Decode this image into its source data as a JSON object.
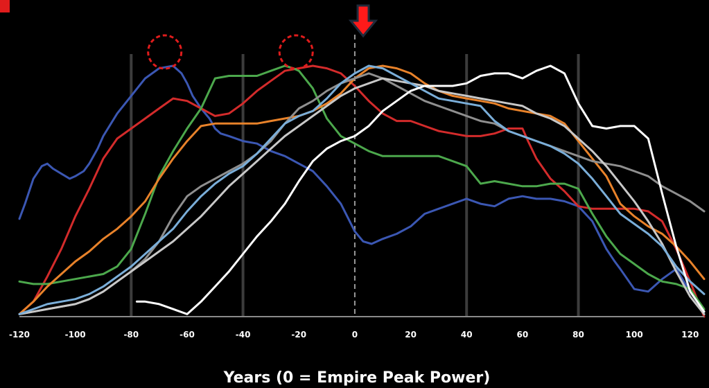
{
  "chart_data": {
    "type": "line",
    "title": "",
    "xlabel": "Years (0 = Empire Peak Power)",
    "ylabel": "",
    "xlim": [
      -120,
      125
    ],
    "ylim": [
      0,
      100
    ],
    "xticks": [
      -120,
      -100,
      -80,
      -60,
      -40,
      -20,
      0,
      20,
      40,
      60,
      80,
      100,
      120
    ],
    "gridlines_x": [
      -80,
      -40,
      40,
      80
    ],
    "grid": "vertical lines at selected ticks",
    "reference_line": {
      "x": 0,
      "style": "dashed"
    },
    "peak_markers": [
      {
        "x": -68,
        "y": 100
      },
      {
        "x": -21,
        "y": 100
      }
    ],
    "arrow_marker": {
      "x": 3
    },
    "series": [
      {
        "color": "#3b57b3",
        "x": [
          -120,
          -118,
          -115,
          -112,
          -110,
          -108,
          -105,
          -102,
          -100,
          -97,
          -95,
          -92,
          -90,
          -85,
          -80,
          -75,
          -70,
          -65,
          -62,
          -60,
          -58,
          -55,
          -52,
          -50,
          -48,
          -45,
          -40,
          -35,
          -30,
          -25,
          -20,
          -15,
          -10,
          -5,
          0,
          3,
          6,
          10,
          15,
          20,
          25,
          30,
          35,
          40,
          45,
          50,
          55,
          60,
          65,
          70,
          75,
          80,
          85,
          90,
          93,
          95,
          100,
          105,
          110,
          115,
          120,
          125
        ],
        "y": [
          39,
          45,
          55,
          60,
          61,
          59,
          57,
          55,
          56,
          58,
          61,
          67,
          72,
          81,
          88,
          95,
          99,
          100,
          97,
          93,
          88,
          83,
          79,
          75,
          73,
          72,
          70,
          69,
          66,
          64,
          61,
          58,
          52,
          45,
          34,
          30,
          29,
          31,
          33,
          36,
          41,
          43,
          45,
          47,
          45,
          44,
          47,
          48,
          47,
          47,
          46,
          44,
          38,
          27,
          22,
          19,
          11,
          10,
          15,
          19,
          10,
          2
        ]
      },
      {
        "color": "#d32b2b",
        "x": [
          -120,
          -115,
          -110,
          -105,
          -100,
          -95,
          -90,
          -85,
          -80,
          -75,
          -70,
          -65,
          -60,
          -55,
          -50,
          -45,
          -40,
          -35,
          -30,
          -25,
          -20,
          -15,
          -10,
          -5,
          0,
          5,
          10,
          15,
          20,
          25,
          30,
          35,
          40,
          45,
          50,
          55,
          60,
          62,
          65,
          70,
          75,
          80,
          85,
          90,
          95,
          100,
          105,
          110,
          115,
          120,
          125
        ],
        "y": [
          1,
          6,
          16,
          27,
          40,
          51,
          63,
          71,
          75,
          79,
          83,
          87,
          86,
          83,
          80,
          81,
          85,
          90,
          94,
          98,
          99,
          100,
          99,
          97,
          92,
          86,
          81,
          78,
          78,
          76,
          74,
          73,
          72,
          72,
          73,
          75,
          75,
          70,
          63,
          55,
          50,
          44,
          43,
          43,
          43,
          43,
          42,
          38,
          27,
          14,
          0
        ]
      },
      {
        "color": "#4ca84c",
        "x": [
          -120,
          -115,
          -110,
          -105,
          -100,
          -95,
          -90,
          -85,
          -80,
          -75,
          -70,
          -65,
          -60,
          -55,
          -50,
          -45,
          -40,
          -35,
          -30,
          -25,
          -22,
          -20,
          -15,
          -10,
          -5,
          0,
          5,
          10,
          20,
          30,
          40,
          45,
          50,
          55,
          60,
          65,
          70,
          75,
          80,
          85,
          90,
          95,
          100,
          105,
          110,
          115,
          120,
          125
        ],
        "y": [
          14,
          13,
          13,
          14,
          15,
          16,
          17,
          20,
          27,
          41,
          56,
          66,
          75,
          83,
          95,
          96,
          96,
          96,
          98,
          100,
          99,
          98,
          91,
          79,
          72,
          69,
          66,
          64,
          64,
          64,
          60,
          53,
          54,
          53,
          52,
          52,
          53,
          53,
          51,
          41,
          32,
          25,
          21,
          17,
          14,
          13,
          11,
          3
        ]
      },
      {
        "color": "#e8822a",
        "x": [
          -120,
          -115,
          -110,
          -105,
          -100,
          -95,
          -90,
          -85,
          -80,
          -75,
          -70,
          -65,
          -60,
          -55,
          -50,
          -45,
          -40,
          -35,
          -30,
          -25,
          -20,
          -15,
          -10,
          -5,
          0,
          5,
          10,
          15,
          20,
          25,
          30,
          35,
          40,
          45,
          50,
          55,
          60,
          65,
          70,
          75,
          80,
          85,
          90,
          95,
          100,
          105,
          110,
          115,
          120,
          125
        ],
        "y": [
          1,
          6,
          12,
          17,
          22,
          26,
          31,
          35,
          40,
          46,
          55,
          63,
          70,
          76,
          77,
          77,
          77,
          77,
          78,
          79,
          80,
          82,
          85,
          89,
          95,
          99,
          100,
          99,
          97,
          93,
          90,
          88,
          87,
          86,
          85,
          83,
          82,
          81,
          80,
          77,
          70,
          63,
          56,
          45,
          40,
          36,
          33,
          28,
          22,
          15
        ]
      },
      {
        "color": "#8f8f8f",
        "x": [
          -120,
          -115,
          -110,
          -105,
          -100,
          -95,
          -90,
          -85,
          -80,
          -75,
          -70,
          -65,
          -60,
          -55,
          -50,
          -45,
          -40,
          -35,
          -30,
          -25,
          -20,
          -15,
          -10,
          -5,
          0,
          5,
          10,
          15,
          20,
          25,
          30,
          35,
          40,
          45,
          50,
          55,
          60,
          65,
          70,
          75,
          80,
          85,
          90,
          95,
          100,
          105,
          110,
          115,
          120,
          125
        ],
        "y": [
          1,
          2,
          3,
          4,
          5,
          7,
          10,
          14,
          18,
          23,
          30,
          40,
          48,
          52,
          55,
          58,
          61,
          65,
          70,
          77,
          83,
          86,
          90,
          93,
          95,
          97,
          95,
          92,
          89,
          86,
          84,
          82,
          80,
          78,
          77,
          74,
          72,
          70,
          68,
          66,
          64,
          62,
          61,
          60,
          58,
          56,
          52,
          49,
          46,
          42
        ]
      },
      {
        "color": "#c8c8c8",
        "x": [
          -120,
          -115,
          -110,
          -105,
          -100,
          -95,
          -90,
          -85,
          -80,
          -75,
          -70,
          -65,
          -60,
          -55,
          -50,
          -45,
          -40,
          -35,
          -30,
          -25,
          -20,
          -15,
          -10,
          -5,
          0,
          5,
          10,
          15,
          20,
          25,
          30,
          35,
          40,
          45,
          50,
          55,
          60,
          65,
          70,
          75,
          80,
          85,
          90,
          95,
          100,
          105,
          110,
          115,
          120,
          125
        ],
        "y": [
          1,
          2,
          3,
          4,
          5,
          7,
          10,
          14,
          18,
          22,
          26,
          30,
          35,
          40,
          46,
          52,
          57,
          62,
          67,
          72,
          76,
          80,
          84,
          88,
          91,
          93,
          95,
          94,
          93,
          92,
          90,
          89,
          88,
          87,
          86,
          85,
          84,
          81,
          79,
          76,
          71,
          66,
          60,
          53,
          46,
          38,
          29,
          18,
          8,
          1
        ]
      },
      {
        "color": "#7aaed9",
        "x": [
          -120,
          -115,
          -110,
          -105,
          -100,
          -95,
          -90,
          -85,
          -80,
          -75,
          -70,
          -65,
          -60,
          -55,
          -50,
          -45,
          -40,
          -35,
          -30,
          -25,
          -20,
          -15,
          -10,
          -5,
          0,
          5,
          10,
          15,
          20,
          25,
          30,
          35,
          40,
          45,
          50,
          55,
          60,
          65,
          70,
          75,
          80,
          85,
          90,
          95,
          100,
          105,
          110,
          115,
          120,
          125
        ],
        "y": [
          1,
          3,
          5,
          6,
          7,
          9,
          12,
          16,
          20,
          25,
          30,
          35,
          42,
          48,
          53,
          57,
          60,
          65,
          71,
          77,
          80,
          82,
          87,
          93,
          97,
          100,
          99,
          96,
          93,
          90,
          87,
          86,
          85,
          84,
          78,
          74,
          72,
          70,
          68,
          65,
          61,
          55,
          48,
          41,
          37,
          33,
          28,
          20,
          14,
          9
        ]
      },
      {
        "color": "#ffffff",
        "x": [
          -78,
          -75,
          -70,
          -65,
          -60,
          -55,
          -50,
          -45,
          -40,
          -35,
          -30,
          -25,
          -20,
          -15,
          -10,
          -5,
          0,
          5,
          10,
          15,
          20,
          25,
          30,
          35,
          40,
          45,
          50,
          55,
          60,
          65,
          70,
          75,
          80,
          85,
          90,
          95,
          100,
          105,
          110,
          115,
          120,
          125
        ],
        "y": [
          6,
          6,
          5,
          3,
          1,
          6,
          12,
          18,
          25,
          32,
          38,
          45,
          54,
          62,
          67,
          70,
          72,
          76,
          82,
          86,
          90,
          92,
          92,
          92,
          93,
          96,
          97,
          97,
          95,
          98,
          100,
          97,
          85,
          76,
          75,
          76,
          76,
          71,
          49,
          28,
          10,
          2
        ]
      }
    ]
  }
}
